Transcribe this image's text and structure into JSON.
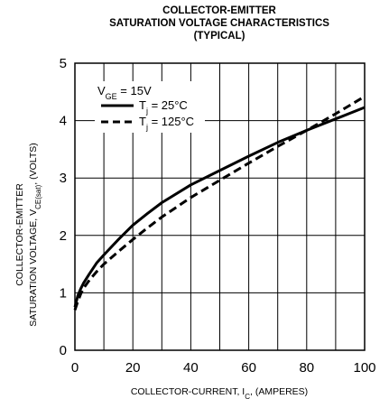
{
  "chart_data": {
    "type": "line",
    "title": [
      "COLLECTOR-EMITTER",
      "SATURATION VOLTAGE CHARACTERISTICS",
      "(TYPICAL)"
    ],
    "xlabel": {
      "text": "COLLECTOR-CURRENT, I",
      "sub": "C",
      "suffix": ", (AMPERES)"
    },
    "ylabel": {
      "line1": "COLLECTOR-EMITTER",
      "line2_text": "SATURATION VOLTAGE, V",
      "line2_sub": "CE(sat)",
      "line2_suffix": ", (VOLTS)"
    },
    "xlim": [
      0,
      100
    ],
    "ylim": [
      0,
      5
    ],
    "x_ticks": [
      0,
      20,
      40,
      60,
      80,
      100
    ],
    "y_ticks": [
      0,
      1,
      2,
      3,
      4,
      5
    ],
    "x_gridlines": [
      0,
      10,
      20,
      30,
      40,
      50,
      60,
      70,
      80,
      90,
      100
    ],
    "y_gridlines": [
      0,
      1,
      2,
      3,
      4,
      5
    ],
    "grid": true,
    "legend": {
      "placement": "top-left",
      "condition": {
        "text": "V",
        "sub": "GE",
        "suffix": " = 15V"
      }
    },
    "series": [
      {
        "name": "T_j = 25°C",
        "label": {
          "text": "T",
          "sub": "j",
          "suffix": " = 25°C"
        },
        "style": "solid",
        "color": "#000000",
        "x": [
          0,
          1,
          2,
          3,
          5,
          7.5,
          10,
          15,
          20,
          25,
          30,
          40,
          50,
          60,
          70,
          80,
          90,
          100
        ],
        "y": [
          0.75,
          0.95,
          1.07,
          1.17,
          1.33,
          1.52,
          1.66,
          1.93,
          2.18,
          2.38,
          2.57,
          2.88,
          3.13,
          3.38,
          3.62,
          3.83,
          4.03,
          4.23
        ]
      },
      {
        "name": "T_j = 125°C",
        "label": {
          "text": "T",
          "sub": "j",
          "suffix": " = 125°C"
        },
        "style": "dashed",
        "color": "#000000",
        "x": [
          0,
          1,
          2,
          3,
          5,
          7.5,
          10,
          15,
          20,
          25,
          30,
          40,
          50,
          60,
          70,
          80,
          90,
          100
        ],
        "y": [
          0.7,
          0.85,
          0.98,
          1.08,
          1.22,
          1.37,
          1.5,
          1.72,
          1.93,
          2.13,
          2.32,
          2.66,
          2.96,
          3.26,
          3.55,
          3.83,
          4.12,
          4.42
        ]
      }
    ]
  }
}
